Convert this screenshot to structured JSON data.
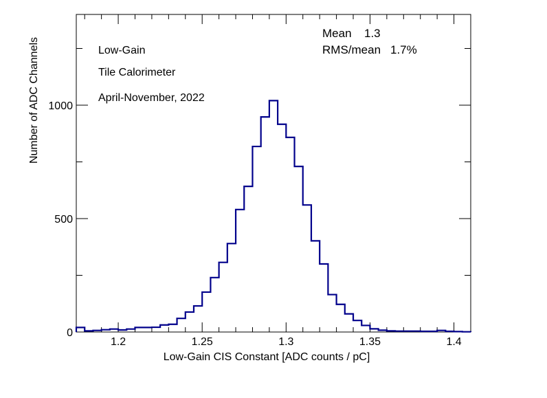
{
  "chart_data": {
    "type": "histogram",
    "xlabel": "Low-Gain CIS Constant [ADC counts / pC]",
    "ylabel": "Number of ADC Channels",
    "xlim": [
      1.175,
      1.41
    ],
    "ylim": [
      0,
      1400
    ],
    "x_ticks": [
      1.2,
      1.25,
      1.3,
      1.35,
      1.4
    ],
    "x_tick_labels": [
      "1.2",
      "1.25",
      "1.3",
      "1.35",
      "1.4"
    ],
    "y_ticks": [
      0,
      500,
      1000
    ],
    "y_tick_labels": [
      "0",
      "500",
      "1000"
    ],
    "bin_edges": [
      1.175,
      1.18,
      1.185,
      1.19,
      1.195,
      1.2,
      1.205,
      1.21,
      1.215,
      1.22,
      1.225,
      1.23,
      1.235,
      1.24,
      1.245,
      1.25,
      1.255,
      1.26,
      1.265,
      1.27,
      1.275,
      1.28,
      1.285,
      1.29,
      1.295,
      1.3,
      1.305,
      1.31,
      1.315,
      1.32,
      1.325,
      1.33,
      1.335,
      1.34,
      1.345,
      1.35,
      1.355,
      1.36,
      1.365,
      1.37,
      1.375,
      1.38,
      1.385,
      1.39,
      1.395,
      1.4,
      1.405,
      1.41
    ],
    "counts": [
      20,
      5,
      7,
      10,
      13,
      9,
      13,
      20,
      20,
      21,
      31,
      34,
      60,
      88,
      115,
      176,
      240,
      307,
      390,
      540,
      642,
      818,
      948,
      1020,
      916,
      858,
      730,
      560,
      402,
      300,
      165,
      122,
      80,
      51,
      29,
      14,
      8,
      5,
      4,
      4,
      4,
      3,
      3,
      7,
      3,
      2,
      1
    ],
    "series_color": "#00008b",
    "stats": {
      "mean_label": "Mean",
      "mean_value": "1.3",
      "rms_label": "RMS/mean",
      "rms_value": "1.7%"
    },
    "annotations": [
      "Low-Gain",
      "Tile Calorimeter",
      "April-November, 2022"
    ],
    "grid": false,
    "legend": "none"
  }
}
